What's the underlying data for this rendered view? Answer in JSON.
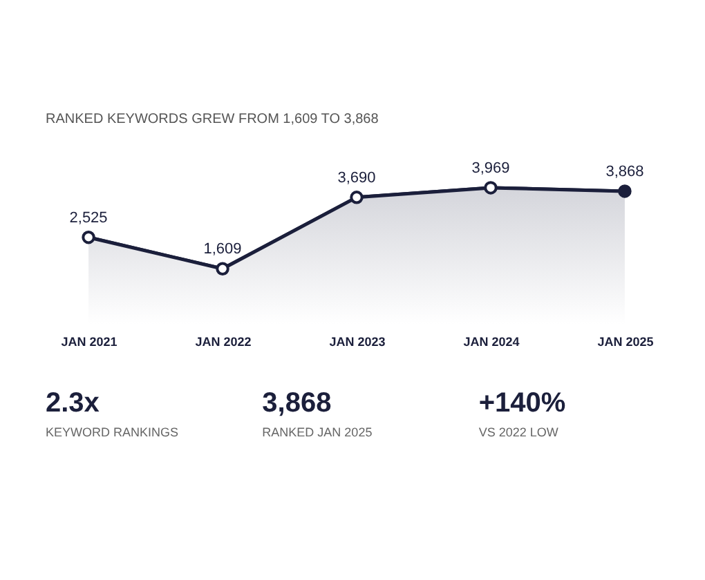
{
  "chart_data": [
    {
      "type": "area",
      "title": "RANKED KEYWORDS GREW FROM 1,609 TO 3,868",
      "categories": [
        "JAN 2021",
        "JAN 2022",
        "JAN 2023",
        "JAN 2024",
        "JAN 2025"
      ],
      "marker": "circle",
      "grid": false,
      "series": [
        {
          "color": "#1b1f3b",
          "values": [
            2525,
            1609,
            3690,
            3969,
            3868
          ],
          "value_labels": [
            "2,525",
            "1,609",
            "3,690",
            "3,969",
            "3,868"
          ],
          "colors": [
            "#ffffff",
            "#ffffff",
            "#ffffff",
            "#ffffff",
            "#1b1f3b"
          ]
        }
      ]
    },
    {
      "type": "other",
      "categories": [
        "KEYWORD RANKINGS",
        "RANKED JAN 2025",
        "VS 2022 LOW"
      ],
      "value_labels": [
        "2.3x",
        "3,868",
        "+140%"
      ]
    }
  ]
}
